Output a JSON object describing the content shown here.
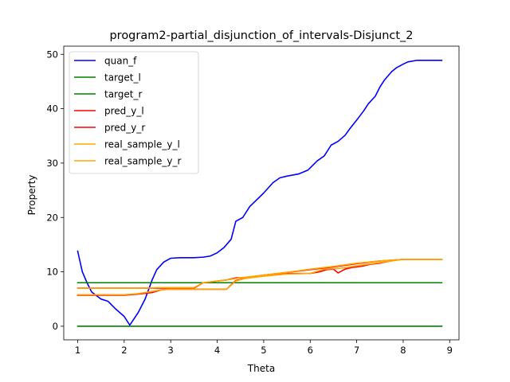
{
  "chart_data": {
    "type": "line",
    "title": "program2-partial_disjunction_of_intervals-Disjunct_2",
    "xlabel": "Theta",
    "ylabel": "Property",
    "xlim": [
      0.7,
      9.2
    ],
    "ylim": [
      -2.5,
      51.5
    ],
    "xticks": [
      1,
      2,
      3,
      4,
      5,
      6,
      7,
      8,
      9
    ],
    "yticks": [
      0,
      10,
      20,
      30,
      40,
      50
    ],
    "grid": false,
    "legend_position": "top-left",
    "series": [
      {
        "name": "quan_f",
        "color": "#0000ff",
        "x": [
          1.0,
          1.1,
          1.2,
          1.3,
          1.5,
          1.65,
          1.8,
          2.0,
          2.12,
          2.3,
          2.45,
          2.6,
          2.7,
          2.85,
          3.0,
          3.2,
          3.5,
          3.7,
          3.85,
          4.0,
          4.15,
          4.3,
          4.4,
          4.55,
          4.7,
          5.0,
          5.2,
          5.35,
          5.5,
          5.75,
          5.95,
          6.15,
          6.3,
          6.45,
          6.6,
          6.75,
          6.85,
          7.0,
          7.15,
          7.25,
          7.4,
          7.5,
          7.6,
          7.75,
          7.85,
          8.0,
          8.1,
          8.3,
          8.5,
          8.83
        ],
        "values": [
          13.8,
          10.0,
          8.0,
          6.3,
          5.0,
          4.6,
          3.3,
          1.8,
          0.2,
          2.5,
          5.0,
          8.5,
          10.4,
          11.8,
          12.5,
          12.6,
          12.6,
          12.7,
          12.9,
          13.5,
          14.5,
          16.0,
          19.3,
          20.0,
          22.0,
          24.5,
          26.4,
          27.3,
          27.6,
          28.0,
          28.7,
          30.4,
          31.3,
          33.3,
          34.0,
          35.1,
          36.3,
          37.9,
          39.6,
          40.9,
          42.3,
          44.0,
          45.3,
          46.8,
          47.5,
          48.2,
          48.6,
          48.9,
          48.9,
          48.9
        ]
      },
      {
        "name": "target_l",
        "color": "#008000",
        "x": [
          1.0,
          8.83
        ],
        "values": [
          8.0,
          8.0
        ]
      },
      {
        "name": "target_r",
        "color": "#008000",
        "x": [
          1.0,
          8.83
        ],
        "values": [
          0.0,
          0.0
        ]
      },
      {
        "name": "pred_y_l",
        "color": "#ff0000",
        "x": [
          1.0,
          2.0,
          2.3,
          2.6,
          2.8,
          3.0,
          3.5,
          4.2,
          4.4,
          4.6,
          5.0,
          5.5,
          6.0,
          6.2,
          6.35,
          6.5,
          6.6,
          6.75,
          6.9,
          7.0,
          7.15,
          7.3,
          7.5,
          7.8,
          8.0,
          8.83
        ],
        "values": [
          5.7,
          5.7,
          5.9,
          6.2,
          6.7,
          6.8,
          6.8,
          6.8,
          8.4,
          8.8,
          9.3,
          9.7,
          9.7,
          10.0,
          10.4,
          10.5,
          9.8,
          10.5,
          10.8,
          10.9,
          11.1,
          11.4,
          11.6,
          12.1,
          12.3,
          12.3
        ]
      },
      {
        "name": "pred_y_r",
        "color": "#ff0000",
        "x": [
          1.0,
          2.0,
          2.5,
          2.7,
          3.0,
          3.5,
          3.7,
          4.0,
          4.2,
          4.4,
          4.6,
          5.0,
          5.5,
          6.0,
          6.5,
          7.0,
          7.5,
          8.0,
          8.83
        ],
        "values": [
          7.0,
          7.0,
          7.0,
          7.0,
          7.0,
          7.0,
          8.0,
          8.3,
          8.5,
          8.9,
          8.9,
          9.4,
          9.9,
          10.4,
          10.9,
          11.5,
          12.0,
          12.3,
          12.3
        ]
      },
      {
        "name": "real_sample_y_l",
        "color": "#ffa500",
        "x": [
          1.0,
          2.0,
          2.3,
          2.6,
          2.8,
          3.0,
          3.5,
          4.2,
          4.4,
          4.6,
          5.0,
          5.5,
          6.0,
          6.3,
          6.6,
          7.0,
          7.5,
          8.0,
          8.83
        ],
        "values": [
          5.8,
          5.8,
          6.0,
          6.4,
          6.7,
          6.8,
          6.8,
          6.8,
          8.3,
          8.8,
          9.2,
          9.6,
          9.7,
          10.5,
          10.6,
          11.1,
          11.7,
          12.3,
          12.3
        ]
      },
      {
        "name": "real_sample_y_r",
        "color": "#ffa500",
        "x": [
          1.0,
          2.0,
          2.5,
          2.7,
          3.0,
          3.5,
          3.7,
          4.0,
          4.2,
          4.5,
          5.0,
          5.5,
          6.0,
          6.5,
          7.0,
          7.5,
          8.0,
          8.83
        ],
        "values": [
          7.0,
          7.0,
          7.0,
          7.1,
          7.1,
          7.1,
          8.0,
          8.3,
          8.5,
          8.9,
          9.4,
          9.9,
          10.5,
          11.0,
          11.6,
          12.0,
          12.3,
          12.3
        ]
      }
    ]
  }
}
